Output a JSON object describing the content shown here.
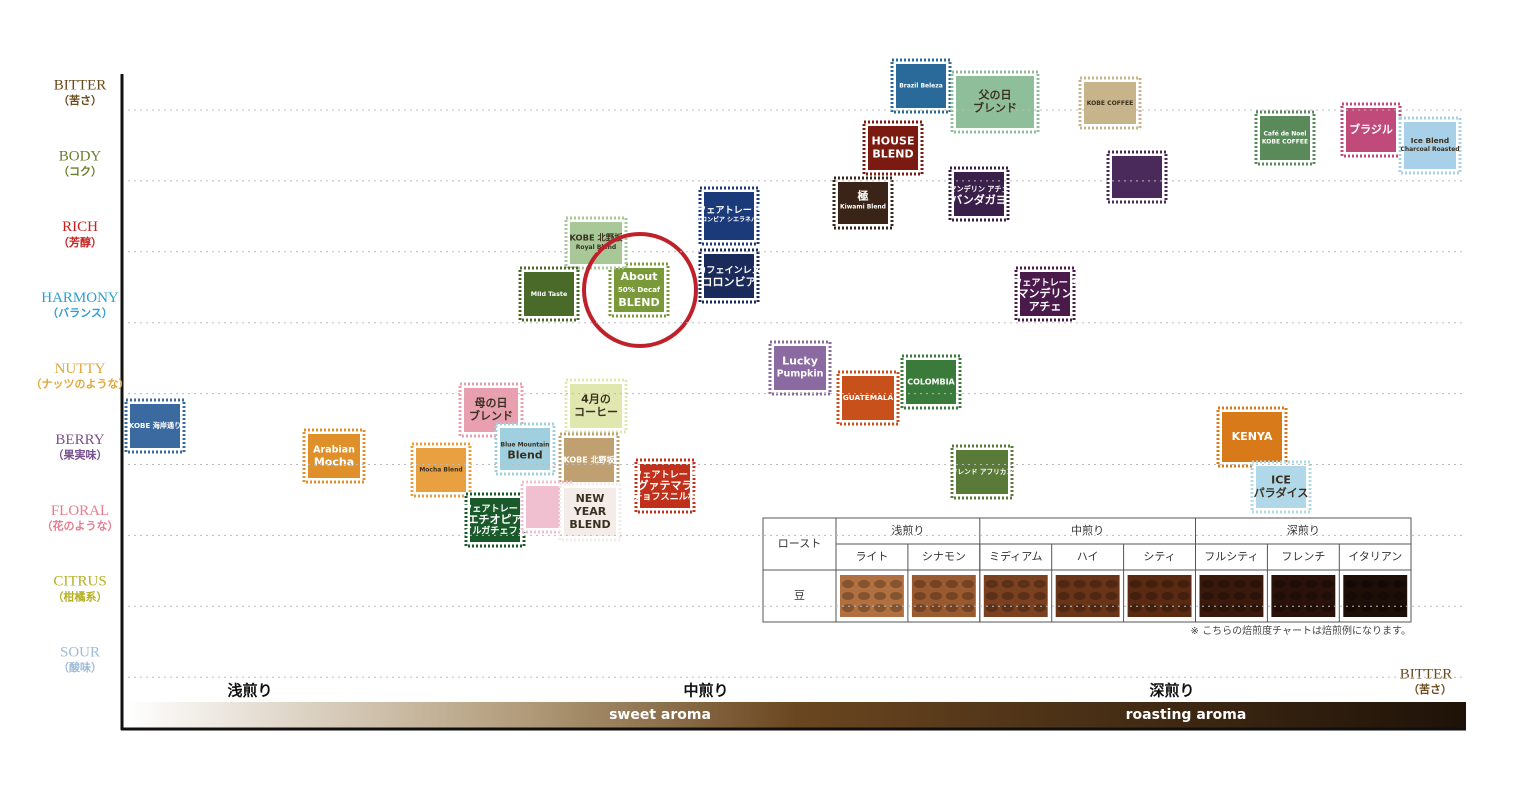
{
  "y_axis": [
    {
      "name": "BITTER",
      "sub": "（苦さ）"
    },
    {
      "name": "BODY",
      "sub": "（コク）"
    },
    {
      "name": "RICH",
      "sub": "（芳醇）"
    },
    {
      "name": "HARMONY",
      "sub": "（バランス）"
    },
    {
      "name": "NUTTY",
      "sub": "（ナッツのような）"
    },
    {
      "name": "BERRY",
      "sub": "（果実味）"
    },
    {
      "name": "FLORAL",
      "sub": "（花のような）"
    },
    {
      "name": "CITRUS",
      "sub": "（柑橘系）"
    },
    {
      "name": "SOUR",
      "sub": "（酸味）"
    }
  ],
  "x_axis": {
    "light": "浅煎り",
    "medium": "中煎り",
    "dark": "深煎り",
    "sweet": "sweet aroma",
    "roasting": "roasting aroma",
    "end": "BITTER",
    "end_sub": "（苦さ）"
  },
  "stamps": [
    {
      "lines": [
        "Brazil Beleza"
      ]
    },
    {
      "lines": [
        "父の日",
        "ブレンド"
      ]
    },
    {
      "lines": [
        "KOBE COFFEE"
      ]
    },
    {
      "lines": [
        "HOUSE",
        "BLEND"
      ]
    },
    {
      "lines": [
        "極",
        "Kiwami Blend"
      ]
    },
    {
      "lines": [
        "マンデリン アチェ",
        "バンダガヨ"
      ]
    },
    {
      "lines": []
    },
    {
      "lines": [
        "Café de Noel",
        "KOBE COFFEE"
      ]
    },
    {
      "lines": [
        "ブラジル"
      ]
    },
    {
      "lines": [
        "Ice Blend",
        "Charcoal Roasted"
      ]
    },
    {
      "lines": [
        "フェアトレード",
        "コロンビア シエラネバダ"
      ]
    },
    {
      "lines": [
        "カフェインレス",
        "コロンビア"
      ]
    },
    {
      "lines": [
        "About",
        "50% Decaf",
        "BLEND"
      ]
    },
    {
      "lines": [
        "KOBE 北野坂",
        "Royal Blend"
      ]
    },
    {
      "lines": [
        "Mild Taste"
      ]
    },
    {
      "lines": [
        "フェアトレード",
        "マンデリン",
        "アチェ"
      ]
    },
    {
      "lines": [
        "Lucky",
        "Pumpkin"
      ]
    },
    {
      "lines": [
        "GUATEMALA"
      ]
    },
    {
      "lines": [
        "COLOMBIA"
      ]
    },
    {
      "lines": [
        "母の日",
        "ブレンド"
      ]
    },
    {
      "lines": [
        "4月の",
        "コーヒー"
      ]
    },
    {
      "lines": [
        "KOBE 海岸通り"
      ]
    },
    {
      "lines": [
        "Arabian",
        "Mocha"
      ]
    },
    {
      "lines": [
        "Mocha Blend"
      ]
    },
    {
      "lines": [
        "Blue Mountain",
        "Blend"
      ]
    },
    {
      "lines": [
        "KOBE 北野坂"
      ]
    },
    {
      "lines": [
        "フェアトレード",
        "グァテマラ",
        "チョフスニル村"
      ]
    },
    {
      "lines": [
        "フレンド アフリカン"
      ]
    },
    {
      "lines": [
        "KENYA"
      ]
    },
    {
      "lines": [
        "ICE",
        "パラダイス"
      ]
    },
    {
      "lines": [
        "フェアトレード",
        "エチオピア",
        "イルガチェフェ"
      ]
    },
    {
      "lines": []
    },
    {
      "lines": [
        "NEW",
        "YEAR",
        "BLEND"
      ]
    }
  ],
  "roast_table": {
    "header": "ロースト",
    "groups": [
      "浅煎り",
      "中煎り",
      "深煎り"
    ],
    "roasts": [
      "ライト",
      "シナモン",
      "ミディアム",
      "ハイ",
      "シティ",
      "フルシティ",
      "フレンチ",
      "イタリアン"
    ],
    "row_label": "豆",
    "note": "※ こちらの焙煎度チャートは焙煎例になります。"
  }
}
